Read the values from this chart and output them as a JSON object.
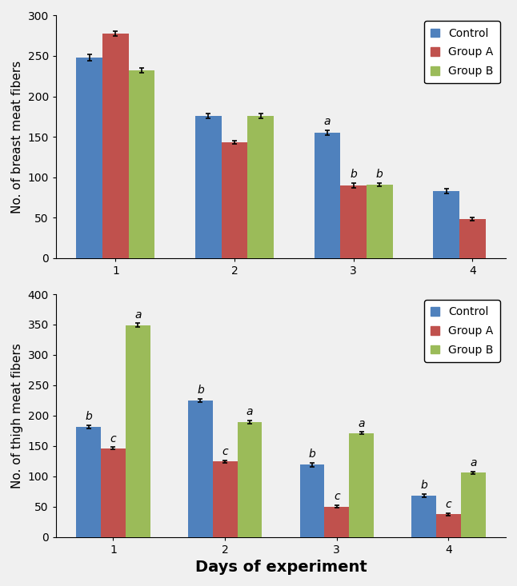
{
  "top_chart": {
    "title": "No. of breast meat fibers",
    "days": [
      1,
      2,
      3,
      4
    ],
    "control": [
      248,
      176,
      155,
      83
    ],
    "group_a": [
      278,
      143,
      90,
      48
    ],
    "group_b": [
      232,
      176,
      91,
      0
    ],
    "control_err": [
      4,
      3,
      3,
      3
    ],
    "group_a_err": [
      3,
      2,
      3,
      2
    ],
    "group_b_err": [
      3,
      3,
      2,
      0
    ],
    "ylim": [
      0,
      300
    ],
    "yticks": [
      0,
      50,
      100,
      150,
      200,
      250,
      300
    ],
    "annotations": {
      "3": {
        "control": "a",
        "group_a": "b",
        "group_b": "b"
      }
    }
  },
  "bottom_chart": {
    "title": "No. of thigh meat fibers",
    "days": [
      1,
      2,
      3,
      4
    ],
    "control": [
      181,
      225,
      119,
      68
    ],
    "group_a": [
      146,
      124,
      50,
      37
    ],
    "group_b": [
      349,
      189,
      171,
      106
    ],
    "control_err": [
      3,
      3,
      3,
      3
    ],
    "group_a_err": [
      2,
      2,
      2,
      2
    ],
    "group_b_err": [
      3,
      3,
      2,
      2
    ],
    "ylim": [
      0,
      400
    ],
    "yticks": [
      0,
      50,
      100,
      150,
      200,
      250,
      300,
      350,
      400
    ],
    "annotations": {
      "1": {
        "control": "b",
        "group_a": "c",
        "group_b": "a"
      },
      "2": {
        "control": "b",
        "group_a": "c",
        "group_b": "a"
      },
      "3": {
        "control": "b",
        "group_a": "c",
        "group_b": "a"
      },
      "4": {
        "control": "b",
        "group_a": "c",
        "group_b": "a"
      }
    }
  },
  "colors": {
    "control": "#4F81BD",
    "group_a": "#C0514D",
    "group_b": "#9BBB59"
  },
  "bar_width": 0.22,
  "xlabel": "Days of experiment",
  "legend_labels": [
    "Control",
    "Group A",
    "Group B"
  ],
  "capsize": 2,
  "xlabel_fontsize": 14,
  "ylabel_fontsize": 11,
  "tick_fontsize": 10,
  "legend_fontsize": 10,
  "annotation_fontsize": 10,
  "fig_bg": "#f0f0f0",
  "ax_bg": "#f0f0f0"
}
